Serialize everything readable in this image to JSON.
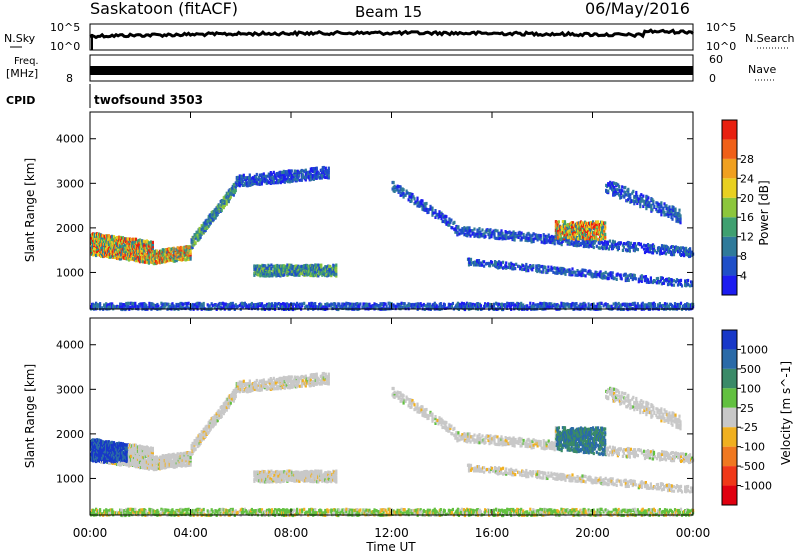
{
  "header": {
    "station": "Saskatoon (fitACF)",
    "beam": "Beam 15",
    "date": "06/May/2016"
  },
  "noise_panel": {
    "left_label": "N.Sky",
    "right_label": "N.Search",
    "left_ticks": [
      "10^5",
      "10^0"
    ],
    "right_ticks": [
      "10^5",
      "10^0"
    ]
  },
  "freq_panel": {
    "left_label_top": "Freq.",
    "left_label_unit": "[MHz]",
    "right_label": "Nave",
    "left_ticks": [
      "",
      "8"
    ],
    "right_ticks": [
      "60",
      "0"
    ]
  },
  "cpid_panel": {
    "label": "CPID",
    "value": "twofsound 3503"
  },
  "range_axis": {
    "label": "Slant Range [km]",
    "ticks": [
      1000,
      2000,
      3000,
      4000
    ],
    "min": 180,
    "max": 4600
  },
  "time_axis": {
    "label": "Time UT",
    "ticks": [
      "00:00",
      "04:00",
      "08:00",
      "12:00",
      "16:00",
      "20:00",
      "00:00"
    ]
  },
  "power_scale": {
    "label": "Power [dB]",
    "ticks": [
      "4",
      "8",
      "12",
      "16",
      "20",
      "24",
      "28"
    ],
    "colors": [
      "#1c1cf0",
      "#1f4fc8",
      "#2f7a9a",
      "#3fa070",
      "#8cc63c",
      "#e8d020",
      "#f0a020",
      "#f06018",
      "#e82010"
    ]
  },
  "velocity_scale": {
    "label": "Velocity [m s^-1]",
    "ticks": [
      "1000",
      "500",
      "100",
      "25",
      "-25",
      "-100",
      "-500",
      "-1000"
    ],
    "colors": [
      "#1838c8",
      "#2a6aa8",
      "#3a8a68",
      "#62c040",
      "#c8c8c8",
      "#f0b020",
      "#f07820",
      "#f03818",
      "#e00010"
    ]
  },
  "chart_data": [
    {
      "type": "heatmap",
      "title": "Power",
      "xlabel": "Time UT",
      "ylabel": "Slant Range [km]",
      "x_range_hours": [
        0,
        24
      ],
      "y_range_km": [
        180,
        4600
      ],
      "colorbar_label": "Power [dB]",
      "colorbar_range": [
        0,
        30
      ]
    },
    {
      "type": "heatmap",
      "title": "Velocity",
      "xlabel": "Time UT",
      "ylabel": "Slant Range [km]",
      "x_range_hours": [
        0,
        24
      ],
      "y_range_km": [
        180,
        4600
      ],
      "colorbar_label": "Velocity [m s^-1]",
      "colorbar_range": [
        -1000,
        1000
      ]
    }
  ]
}
